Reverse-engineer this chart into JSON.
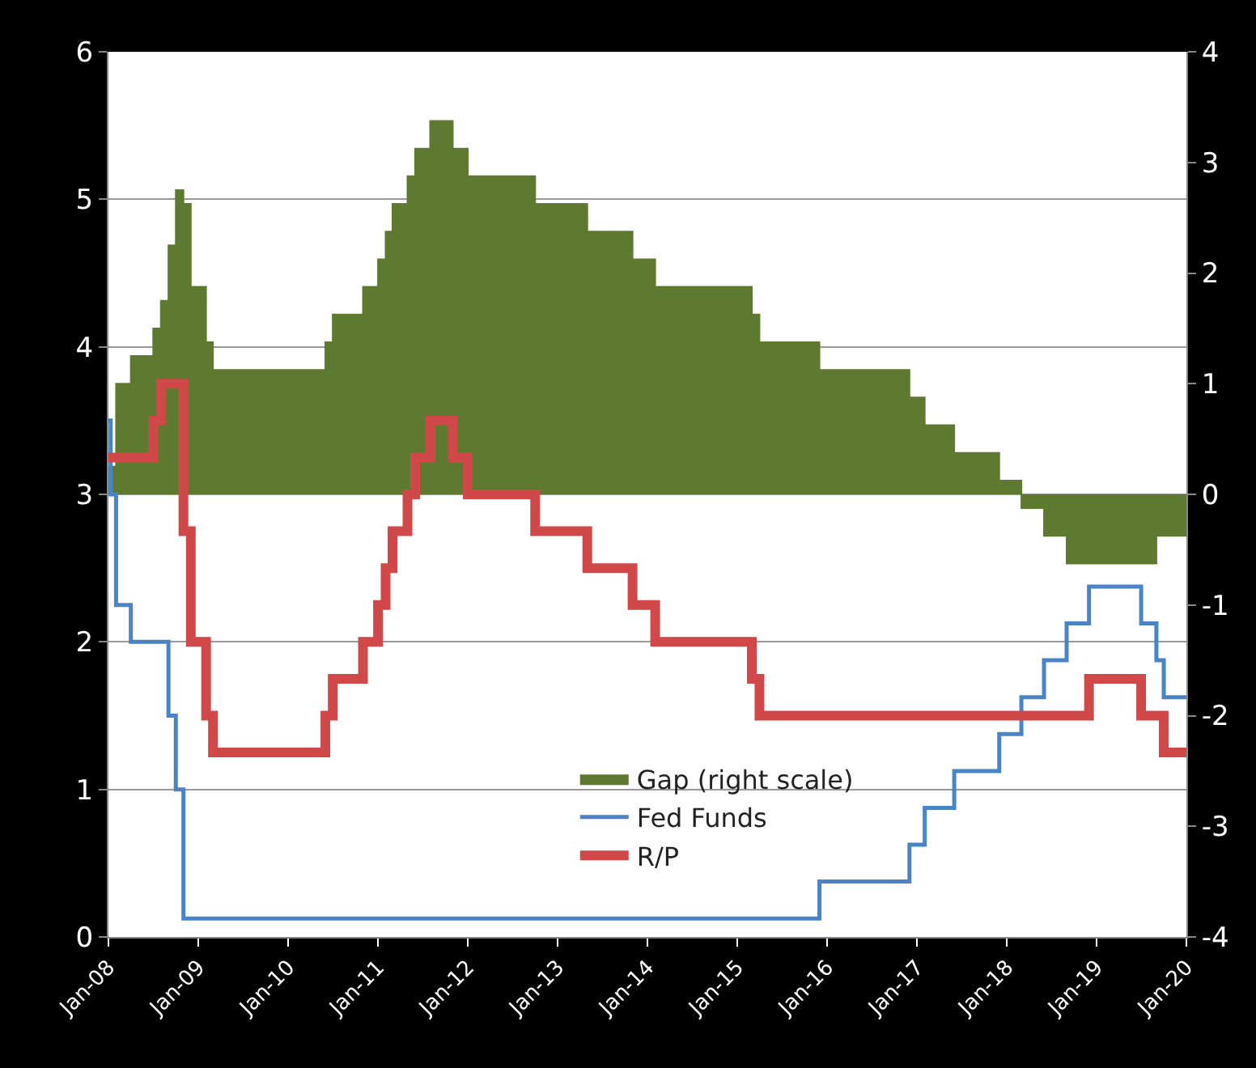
{
  "chart_data": {
    "type": "step",
    "xlim": [
      "2008-01",
      "2020-01"
    ],
    "xticks": [
      {
        "value": "2008-01",
        "label": "Jan-08"
      },
      {
        "value": "2009-01",
        "label": "Jan-09"
      },
      {
        "value": "2010-01",
        "label": "Jan-10"
      },
      {
        "value": "2011-01",
        "label": "Jan-11"
      },
      {
        "value": "2012-01",
        "label": "Jan-12"
      },
      {
        "value": "2013-01",
        "label": "Jan-13"
      },
      {
        "value": "2014-01",
        "label": "Jan-14"
      },
      {
        "value": "2015-01",
        "label": "Jan-15"
      },
      {
        "value": "2016-01",
        "label": "Jan-16"
      },
      {
        "value": "2017-01",
        "label": "Jan-17"
      },
      {
        "value": "2018-01",
        "label": "Jan-18"
      },
      {
        "value": "2019-01",
        "label": "Jan-19"
      },
      {
        "value": "2020-01",
        "label": "Jan-20"
      }
    ],
    "ylim": [
      0,
      6
    ],
    "yticks": [
      0,
      1,
      2,
      3,
      4,
      5,
      6
    ],
    "y2lim": [
      -4,
      4
    ],
    "y2ticks": [
      -4,
      -3,
      -2,
      -1,
      0,
      1,
      2,
      3,
      4
    ],
    "grid": "y",
    "legend": "bottom",
    "series": [
      {
        "name": "Gap (right scale)",
        "type": "area",
        "axis": "y2",
        "color": "#5e7a30",
        "x": [
          "2008-01",
          "2008-02",
          "2008-04",
          "2008-07",
          "2008-08",
          "2008-09",
          "2008-10",
          "2008-11",
          "2008-12",
          "2009-02",
          "2009-03",
          "2010-06",
          "2010-07",
          "2010-11",
          "2011-01",
          "2011-02",
          "2011-03",
          "2011-05",
          "2011-06",
          "2011-08",
          "2011-11",
          "2012-01",
          "2012-10",
          "2013-05",
          "2013-11",
          "2014-02",
          "2015-03",
          "2015-04",
          "2015-12",
          "2016-12",
          "2017-02",
          "2017-06",
          "2017-12",
          "2018-03",
          "2018-06",
          "2018-09",
          "2019-09",
          "2020-01"
        ],
        "values": [
          0.25,
          1.0,
          1.25,
          1.5,
          1.75,
          2.25,
          2.75,
          2.625,
          1.875,
          1.375,
          1.125,
          1.375,
          1.625,
          1.875,
          2.125,
          2.375,
          2.625,
          2.875,
          3.125,
          3.375,
          3.125,
          2.875,
          2.625,
          2.375,
          2.125,
          1.875,
          1.625,
          1.375,
          1.125,
          0.875,
          0.625,
          0.375,
          0.125,
          -0.125,
          -0.375,
          -0.625,
          -0.375,
          -0.375
        ]
      },
      {
        "name": "Fed Funds",
        "color": "#4a84c6",
        "x": [
          "2008-01-01",
          "2008-01-10",
          "2008-02-01",
          "2008-04-01",
          "2008-09-01",
          "2008-10-01",
          "2008-11-01",
          "2015-12-01",
          "2016-12-01",
          "2017-02-01",
          "2017-06-01",
          "2017-12-01",
          "2018-03-01",
          "2018-06-01",
          "2018-09-01",
          "2018-12-01",
          "2019-07-01",
          "2019-09-01",
          "2019-10-01",
          "2020-01-01"
        ],
        "values": [
          3.5,
          3.0,
          2.25,
          2.0,
          1.5,
          1.0,
          0.125,
          0.375,
          0.625,
          0.875,
          1.125,
          1.375,
          1.625,
          1.875,
          2.125,
          2.375,
          2.125,
          1.875,
          1.625,
          1.625
        ]
      },
      {
        "name": "R/P",
        "color": "#d04848",
        "x": [
          "2008-01",
          "2008-07",
          "2008-08",
          "2008-11",
          "2008-12",
          "2009-02",
          "2009-03",
          "2010-06",
          "2010-07",
          "2010-11",
          "2011-01",
          "2011-02",
          "2011-03",
          "2011-05",
          "2011-06",
          "2011-08",
          "2011-11",
          "2012-01",
          "2012-10",
          "2013-05",
          "2013-11",
          "2014-02",
          "2015-03",
          "2015-04",
          "2018-12",
          "2019-07",
          "2019-10",
          "2020-01"
        ],
        "values": [
          3.25,
          3.5,
          3.75,
          2.75,
          2.0,
          1.5,
          1.25,
          1.5,
          1.75,
          2.0,
          2.25,
          2.5,
          2.75,
          3.0,
          3.25,
          3.5,
          3.25,
          3.0,
          2.75,
          2.5,
          2.25,
          2.0,
          1.75,
          1.5,
          1.75,
          1.5,
          1.25,
          1.25
        ]
      }
    ]
  }
}
